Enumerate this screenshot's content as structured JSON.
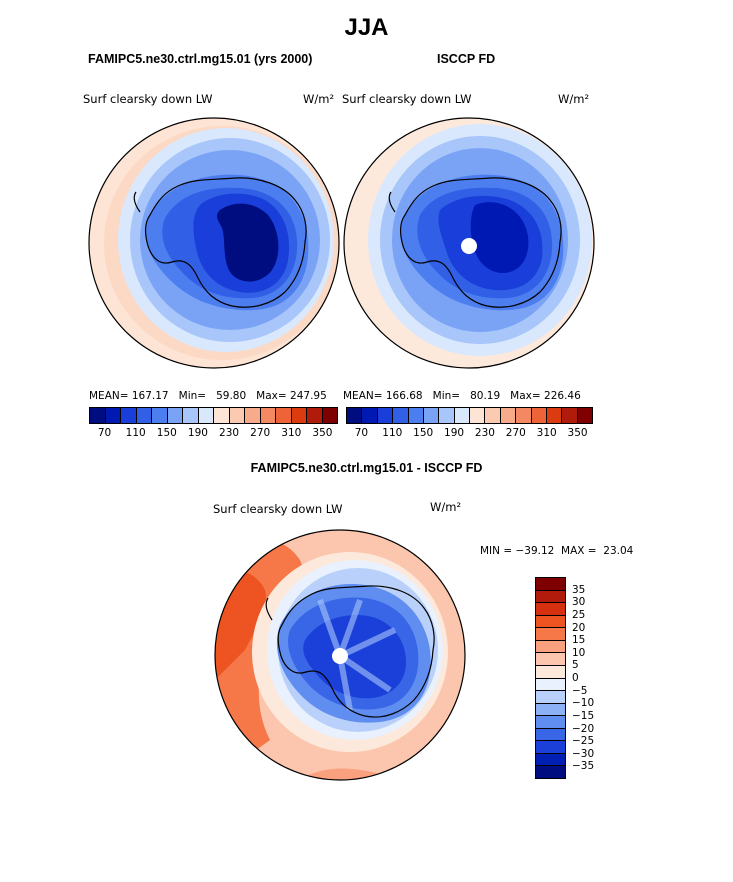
{
  "season": "JJA",
  "panels": [
    {
      "subtitle": "FAMIPC5.ne30.ctrl.mg15.01 (yrs 2000)",
      "variable": "Surf clearsky down LW",
      "units": "W/m²",
      "stats": {
        "mean_label": "MEAN=",
        "mean": "167.17",
        "min_label": "Min=",
        "min": "59.80",
        "max_label": "Max=",
        "max": "247.95"
      }
    },
    {
      "subtitle": "ISCCP FD",
      "variable": "Surf clearsky down LW",
      "units": "W/m²",
      "stats": {
        "mean_label": "MEAN=",
        "mean": "166.68",
        "min_label": "Min=",
        "min": "80.19",
        "max_label": "Max=",
        "max": "226.46"
      }
    }
  ],
  "diff_panel": {
    "subtitle": "FAMIPC5.ne30.ctrl.mg15.01 - ISCCP FD",
    "variable": "Surf clearsky down LW",
    "units": "W/m²",
    "stats": "MIN = −39.12  MAX =  23.04"
  },
  "colorbar_main": {
    "colors": [
      "#000d80",
      "#0019b3",
      "#1a3ed9",
      "#3160e6",
      "#4d7ef0",
      "#7aa3f5",
      "#a8c6fa",
      "#d9e8fc",
      "#fde4d4",
      "#fbcab1",
      "#f8ab8a",
      "#f48863",
      "#ee6337",
      "#dc3b10",
      "#b01b0b",
      "#7f0000"
    ],
    "ticks": [
      "70",
      "110",
      "150",
      "190",
      "230",
      "270",
      "310",
      "350"
    ]
  },
  "colorbar_diff": {
    "colors": [
      "#7f0000",
      "#b01b0b",
      "#d63010",
      "#ee5422",
      "#f67849",
      "#f9a07e",
      "#fbc6ad",
      "#fde8dc",
      "#e8f1fd",
      "#b9d1fa",
      "#8cb1f5",
      "#5f8ef0",
      "#3966e6",
      "#1a40d9",
      "#0020b3",
      "#000d80"
    ],
    "ticks": [
      "35",
      "30",
      "25",
      "20",
      "15",
      "10",
      "5",
      "0",
      "−5",
      "−10",
      "−15",
      "−20",
      "−25",
      "−30",
      "−35"
    ]
  }
}
